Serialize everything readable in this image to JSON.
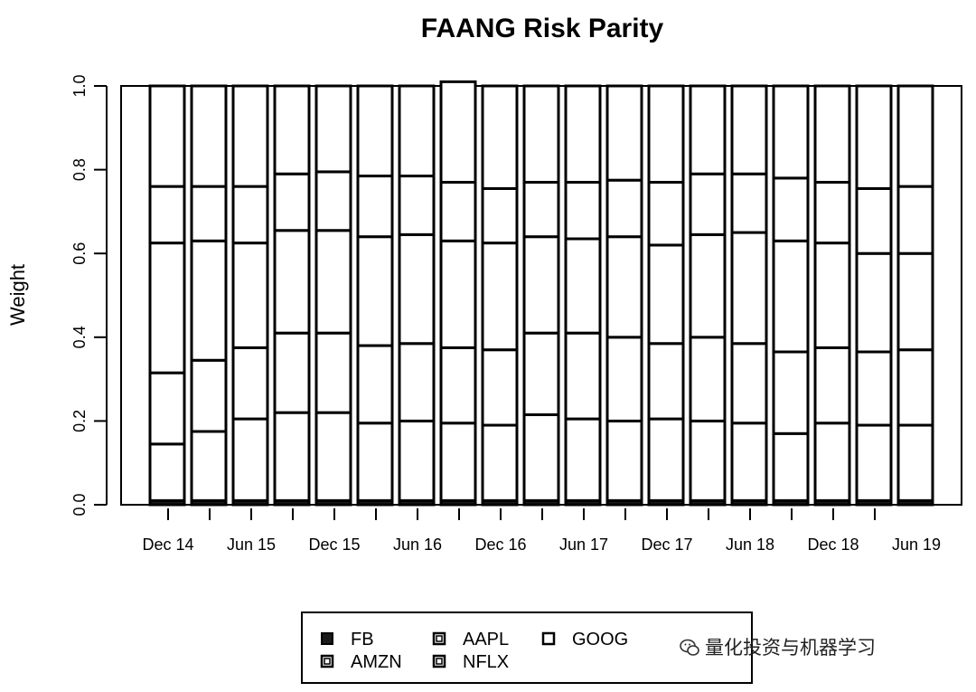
{
  "chart_data": {
    "type": "bar",
    "stacked": true,
    "title": "FAANG Risk Parity",
    "ylabel": "Weight",
    "xlabel": "",
    "ylim": [
      0,
      1
    ],
    "yticks": [
      "0.0",
      "0.2",
      "0.4",
      "0.6",
      "0.8",
      "1.0"
    ],
    "xtick_labels": [
      "Dec 14",
      "Jun 15",
      "Dec 15",
      "Jun 16",
      "Dec 16",
      "Jun 17",
      "Dec 17",
      "Jun 18",
      "Dec 18",
      "Jun 19"
    ],
    "series": [
      {
        "name": "FB",
        "color": "#1a1a1a",
        "values": [
          0.01,
          0.01,
          0.01,
          0.01,
          0.01,
          0.01,
          0.01,
          0.01,
          0.01,
          0.01,
          0.01,
          0.01,
          0.01,
          0.01,
          0.01,
          0.01,
          0.01,
          0.01,
          0.01
        ]
      },
      {
        "name": "AMZN",
        "color": "#ffffff",
        "values": [
          0.135,
          0.165,
          0.195,
          0.21,
          0.21,
          0.185,
          0.19,
          0.185,
          0.18,
          0.205,
          0.195,
          0.19,
          0.195,
          0.19,
          0.185,
          0.16,
          0.185,
          0.18,
          0.18
        ]
      },
      {
        "name": "AAPL",
        "color": "#ffffff",
        "values": [
          0.17,
          0.17,
          0.17,
          0.19,
          0.19,
          0.185,
          0.185,
          0.18,
          0.18,
          0.195,
          0.205,
          0.2,
          0.18,
          0.2,
          0.19,
          0.195,
          0.18,
          0.175,
          0.18
        ]
      },
      {
        "name": "GOOG",
        "color": "#ffffff",
        "values": [
          0.31,
          0.285,
          0.25,
          0.245,
          0.245,
          0.26,
          0.26,
          0.255,
          0.255,
          0.23,
          0.225,
          0.24,
          0.235,
          0.245,
          0.265,
          0.265,
          0.25,
          0.235,
          0.23
        ]
      },
      {
        "name": "NFLX",
        "color": "#ffffff",
        "values": [
          0.135,
          0.13,
          0.135,
          0.135,
          0.14,
          0.145,
          0.14,
          0.14,
          0.13,
          0.13,
          0.135,
          0.135,
          0.15,
          0.145,
          0.14,
          0.15,
          0.145,
          0.155,
          0.16
        ]
      },
      {
        "name": "",
        "color": "#ffffff",
        "values": [
          0.24,
          0.24,
          0.24,
          0.21,
          0.205,
          0.215,
          0.215,
          0.24,
          0.245,
          0.23,
          0.23,
          0.225,
          0.23,
          0.21,
          0.21,
          0.22,
          0.23,
          0.245,
          0.24
        ]
      }
    ],
    "legend": {
      "placement": "bottom",
      "entries": [
        "FB",
        "AAPL",
        "GOOG",
        "AMZN",
        "NFLX"
      ]
    }
  },
  "watermark": "量化投资与机器学习"
}
